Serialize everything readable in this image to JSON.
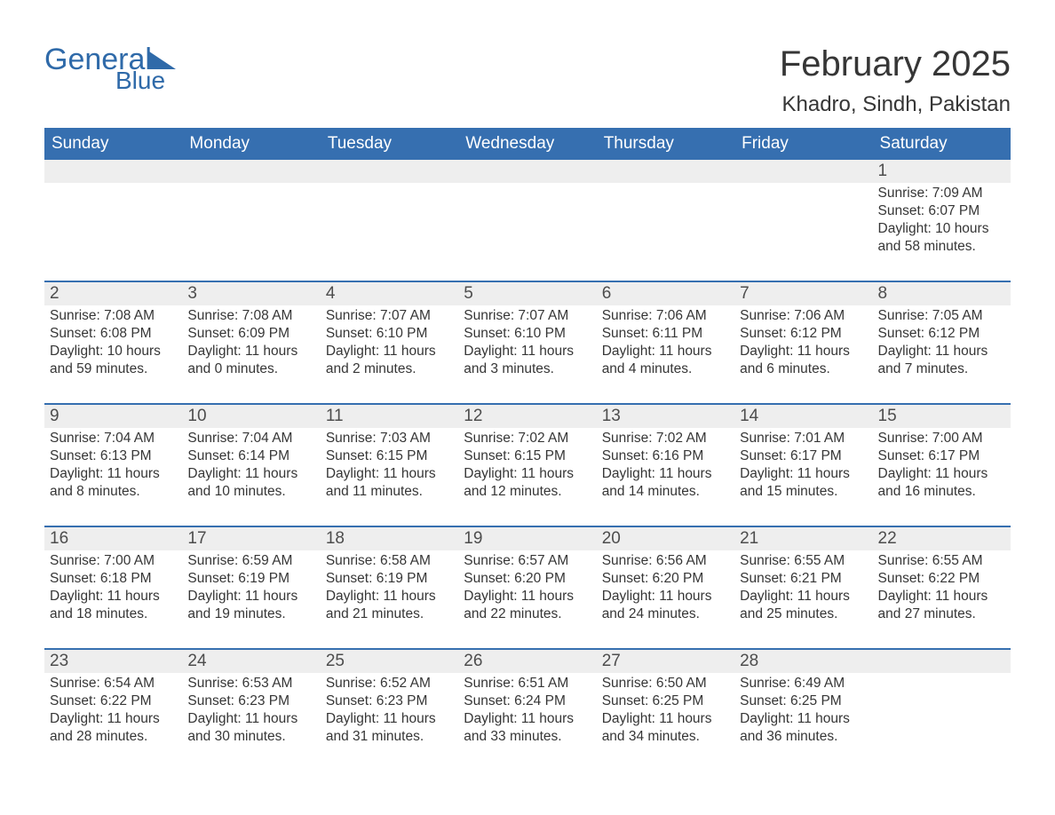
{
  "logo": {
    "text_general": "General",
    "text_blue": "Blue",
    "brand_color": "#2f6aa9"
  },
  "header": {
    "month_title": "February 2025",
    "location": "Khadro, Sindh, Pakistan"
  },
  "calendar": {
    "type": "table",
    "header_bg": "#366fb0",
    "header_fg": "#ffffff",
    "row_rule_color": "#366fb0",
    "daynum_bg": "#eeeeee",
    "background_color": "#ffffff",
    "text_color": "#363636",
    "font_family": "Arial",
    "columns": [
      "Sunday",
      "Monday",
      "Tuesday",
      "Wednesday",
      "Thursday",
      "Friday",
      "Saturday"
    ],
    "weeks": [
      [
        null,
        null,
        null,
        null,
        null,
        null,
        {
          "day": "1",
          "sunrise": "Sunrise: 7:09 AM",
          "sunset": "Sunset: 6:07 PM",
          "daylight": "Daylight: 10 hours and 58 minutes."
        }
      ],
      [
        {
          "day": "2",
          "sunrise": "Sunrise: 7:08 AM",
          "sunset": "Sunset: 6:08 PM",
          "daylight": "Daylight: 10 hours and 59 minutes."
        },
        {
          "day": "3",
          "sunrise": "Sunrise: 7:08 AM",
          "sunset": "Sunset: 6:09 PM",
          "daylight": "Daylight: 11 hours and 0 minutes."
        },
        {
          "day": "4",
          "sunrise": "Sunrise: 7:07 AM",
          "sunset": "Sunset: 6:10 PM",
          "daylight": "Daylight: 11 hours and 2 minutes."
        },
        {
          "day": "5",
          "sunrise": "Sunrise: 7:07 AM",
          "sunset": "Sunset: 6:10 PM",
          "daylight": "Daylight: 11 hours and 3 minutes."
        },
        {
          "day": "6",
          "sunrise": "Sunrise: 7:06 AM",
          "sunset": "Sunset: 6:11 PM",
          "daylight": "Daylight: 11 hours and 4 minutes."
        },
        {
          "day": "7",
          "sunrise": "Sunrise: 7:06 AM",
          "sunset": "Sunset: 6:12 PM",
          "daylight": "Daylight: 11 hours and 6 minutes."
        },
        {
          "day": "8",
          "sunrise": "Sunrise: 7:05 AM",
          "sunset": "Sunset: 6:12 PM",
          "daylight": "Daylight: 11 hours and 7 minutes."
        }
      ],
      [
        {
          "day": "9",
          "sunrise": "Sunrise: 7:04 AM",
          "sunset": "Sunset: 6:13 PM",
          "daylight": "Daylight: 11 hours and 8 minutes."
        },
        {
          "day": "10",
          "sunrise": "Sunrise: 7:04 AM",
          "sunset": "Sunset: 6:14 PM",
          "daylight": "Daylight: 11 hours and 10 minutes."
        },
        {
          "day": "11",
          "sunrise": "Sunrise: 7:03 AM",
          "sunset": "Sunset: 6:15 PM",
          "daylight": "Daylight: 11 hours and 11 minutes."
        },
        {
          "day": "12",
          "sunrise": "Sunrise: 7:02 AM",
          "sunset": "Sunset: 6:15 PM",
          "daylight": "Daylight: 11 hours and 12 minutes."
        },
        {
          "day": "13",
          "sunrise": "Sunrise: 7:02 AM",
          "sunset": "Sunset: 6:16 PM",
          "daylight": "Daylight: 11 hours and 14 minutes."
        },
        {
          "day": "14",
          "sunrise": "Sunrise: 7:01 AM",
          "sunset": "Sunset: 6:17 PM",
          "daylight": "Daylight: 11 hours and 15 minutes."
        },
        {
          "day": "15",
          "sunrise": "Sunrise: 7:00 AM",
          "sunset": "Sunset: 6:17 PM",
          "daylight": "Daylight: 11 hours and 16 minutes."
        }
      ],
      [
        {
          "day": "16",
          "sunrise": "Sunrise: 7:00 AM",
          "sunset": "Sunset: 6:18 PM",
          "daylight": "Daylight: 11 hours and 18 minutes."
        },
        {
          "day": "17",
          "sunrise": "Sunrise: 6:59 AM",
          "sunset": "Sunset: 6:19 PM",
          "daylight": "Daylight: 11 hours and 19 minutes."
        },
        {
          "day": "18",
          "sunrise": "Sunrise: 6:58 AM",
          "sunset": "Sunset: 6:19 PM",
          "daylight": "Daylight: 11 hours and 21 minutes."
        },
        {
          "day": "19",
          "sunrise": "Sunrise: 6:57 AM",
          "sunset": "Sunset: 6:20 PM",
          "daylight": "Daylight: 11 hours and 22 minutes."
        },
        {
          "day": "20",
          "sunrise": "Sunrise: 6:56 AM",
          "sunset": "Sunset: 6:20 PM",
          "daylight": "Daylight: 11 hours and 24 minutes."
        },
        {
          "day": "21",
          "sunrise": "Sunrise: 6:55 AM",
          "sunset": "Sunset: 6:21 PM",
          "daylight": "Daylight: 11 hours and 25 minutes."
        },
        {
          "day": "22",
          "sunrise": "Sunrise: 6:55 AM",
          "sunset": "Sunset: 6:22 PM",
          "daylight": "Daylight: 11 hours and 27 minutes."
        }
      ],
      [
        {
          "day": "23",
          "sunrise": "Sunrise: 6:54 AM",
          "sunset": "Sunset: 6:22 PM",
          "daylight": "Daylight: 11 hours and 28 minutes."
        },
        {
          "day": "24",
          "sunrise": "Sunrise: 6:53 AM",
          "sunset": "Sunset: 6:23 PM",
          "daylight": "Daylight: 11 hours and 30 minutes."
        },
        {
          "day": "25",
          "sunrise": "Sunrise: 6:52 AM",
          "sunset": "Sunset: 6:23 PM",
          "daylight": "Daylight: 11 hours and 31 minutes."
        },
        {
          "day": "26",
          "sunrise": "Sunrise: 6:51 AM",
          "sunset": "Sunset: 6:24 PM",
          "daylight": "Daylight: 11 hours and 33 minutes."
        },
        {
          "day": "27",
          "sunrise": "Sunrise: 6:50 AM",
          "sunset": "Sunset: 6:25 PM",
          "daylight": "Daylight: 11 hours and 34 minutes."
        },
        {
          "day": "28",
          "sunrise": "Sunrise: 6:49 AM",
          "sunset": "Sunset: 6:25 PM",
          "daylight": "Daylight: 11 hours and 36 minutes."
        },
        null
      ]
    ]
  }
}
